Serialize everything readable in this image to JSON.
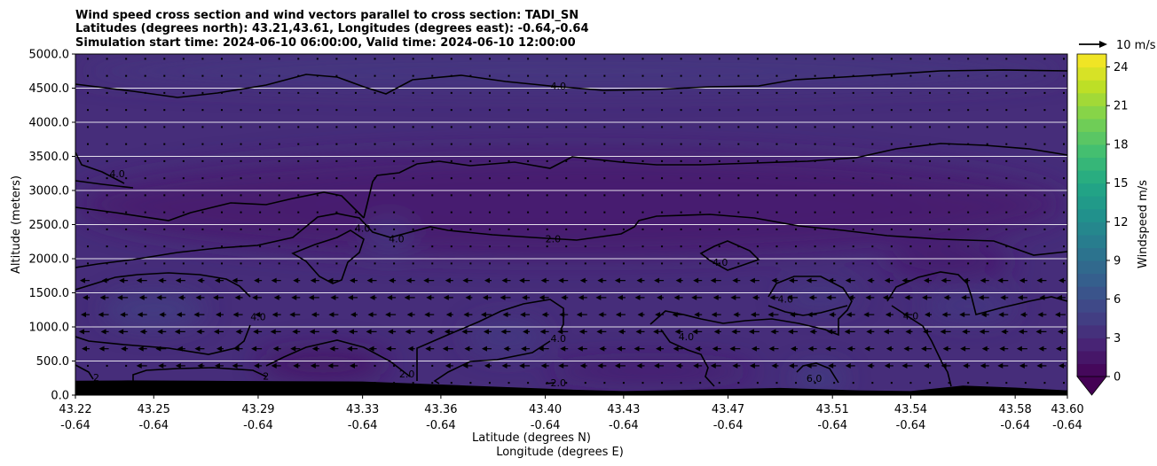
{
  "chart_data": {
    "type": "heatmap",
    "title_lines": [
      "Wind speed cross section and wind vectors parallel to cross section: TADI_SN",
      "Latitudes (degrees north): 43.21,43.61, Longitudes (degrees east): -0.64,-0.64",
      "Simulation start time: 2024-06-10 06:00:00, Valid time: 2024-06-10 12:00:00"
    ],
    "ylabel": "Altitude (meters)",
    "xlabel_lines": [
      "Latitude (degrees N)",
      "Longitude (degrees E)"
    ],
    "ylim": [
      0,
      5000
    ],
    "yticks": [
      {
        "value": 0,
        "label": "0.0"
      },
      {
        "value": 500,
        "label": "500.0"
      },
      {
        "value": 1000,
        "label": "1000.0"
      },
      {
        "value": 1500,
        "label": "1500.0"
      },
      {
        "value": 2000,
        "label": "2000.0"
      },
      {
        "value": 2500,
        "label": "2500.0"
      },
      {
        "value": 3000,
        "label": "3000.0"
      },
      {
        "value": 3500,
        "label": "3500.0"
      },
      {
        "value": 4000,
        "label": "4000.0"
      },
      {
        "value": 4500,
        "label": "4500.0"
      },
      {
        "value": 5000,
        "label": "5000.0"
      }
    ],
    "xlim": [
      43.22,
      43.6
    ],
    "xticks": [
      {
        "value": 43.22,
        "lat": "43.22",
        "lon": "-0.64"
      },
      {
        "value": 43.25,
        "lat": "43.25",
        "lon": "-0.64"
      },
      {
        "value": 43.29,
        "lat": "43.29",
        "lon": "-0.64"
      },
      {
        "value": 43.33,
        "lat": "43.33",
        "lon": "-0.64"
      },
      {
        "value": 43.36,
        "lat": "43.36",
        "lon": "-0.64"
      },
      {
        "value": 43.4,
        "lat": "43.40",
        "lon": "-0.64"
      },
      {
        "value": 43.43,
        "lat": "43.43",
        "lon": "-0.64"
      },
      {
        "value": 43.47,
        "lat": "43.47",
        "lon": "-0.64"
      },
      {
        "value": 43.51,
        "lat": "43.51",
        "lon": "-0.64"
      },
      {
        "value": 43.54,
        "lat": "43.54",
        "lon": "-0.64"
      },
      {
        "value": 43.58,
        "lat": "43.58",
        "lon": "-0.64"
      },
      {
        "value": 43.6,
        "lat": "43.60",
        "lon": "-0.64"
      }
    ],
    "colorbar": {
      "label": "Windspeed m/s",
      "range": [
        0,
        25
      ],
      "ticks": [
        {
          "value": 0,
          "label": "0"
        },
        {
          "value": 3,
          "label": "3"
        },
        {
          "value": 6,
          "label": "6"
        },
        {
          "value": 9,
          "label": "9"
        },
        {
          "value": 12,
          "label": "12"
        },
        {
          "value": 15,
          "label": "15"
        },
        {
          "value": 18,
          "label": "18"
        },
        {
          "value": 21,
          "label": "21"
        },
        {
          "value": 24,
          "label": "24"
        }
      ],
      "extend": "min",
      "colormap": "viridis"
    },
    "quiver_key": {
      "label": "10 m/s",
      "value": 10
    },
    "gridlines": "horizontal",
    "contour_labels": [
      {
        "x": 43.405,
        "y": 4530,
        "label": "4.0"
      },
      {
        "x": 43.236,
        "y": 3250,
        "label": "4.0"
      },
      {
        "x": 43.33,
        "y": 2450,
        "label": "4.0"
      },
      {
        "x": 43.343,
        "y": 2290,
        "label": "4.0"
      },
      {
        "x": 43.403,
        "y": 2290,
        "label": "2.0"
      },
      {
        "x": 43.467,
        "y": 1950,
        "label": "4.0"
      },
      {
        "x": 43.492,
        "y": 1410,
        "label": "4.0"
      },
      {
        "x": 43.54,
        "y": 1160,
        "label": "4.0"
      },
      {
        "x": 43.29,
        "y": 1150,
        "label": "4.0"
      },
      {
        "x": 43.454,
        "y": 860,
        "label": "4.0"
      },
      {
        "x": 43.405,
        "y": 830,
        "label": "4.0"
      },
      {
        "x": 43.347,
        "y": 310,
        "label": "2.0"
      },
      {
        "x": 43.405,
        "y": 180,
        "label": "2.0"
      },
      {
        "x": 43.503,
        "y": 250,
        "label": "6.0"
      },
      {
        "x": 43.228,
        "y": 260,
        "label": "2"
      },
      {
        "x": 43.293,
        "y": 280,
        "label": "2"
      }
    ],
    "terrain_profile": [
      [
        43.22,
        210
      ],
      [
        43.24,
        215
      ],
      [
        43.27,
        210
      ],
      [
        43.3,
        205
      ],
      [
        43.33,
        200
      ],
      [
        43.35,
        170
      ],
      [
        43.37,
        140
      ],
      [
        43.39,
        110
      ],
      [
        43.41,
        80
      ],
      [
        43.43,
        60
      ],
      [
        43.46,
        80
      ],
      [
        43.49,
        105
      ],
      [
        43.52,
        70
      ],
      [
        43.54,
        60
      ],
      [
        43.56,
        140
      ],
      [
        43.58,
        110
      ],
      [
        43.6,
        70
      ]
    ],
    "wind_speed_fill": {
      "background": 3.2,
      "regions": [
        {
          "speed": 1.2,
          "x": [
            43.225,
            43.59
          ],
          "y": [
            2200,
            3200
          ]
        },
        {
          "speed": 1.6,
          "x": [
            43.3,
            43.55
          ],
          "y": [
            2300,
            3400
          ]
        },
        {
          "speed": 2.2,
          "x": [
            43.22,
            43.6
          ],
          "y": [
            2000,
            3600
          ]
        },
        {
          "speed": 1.4,
          "x": [
            43.29,
            43.34
          ],
          "y": [
            200,
            700
          ]
        },
        {
          "speed": 1.8,
          "x": [
            43.4,
            43.48
          ],
          "y": [
            200,
            500
          ]
        },
        {
          "speed": 1.8,
          "x": [
            43.53,
            43.58
          ],
          "y": [
            1700,
            2200
          ]
        },
        {
          "speed": 4.6,
          "x": [
            43.23,
            43.27
          ],
          "y": [
            1000,
            1500
          ]
        },
        {
          "speed": 4.2,
          "x": [
            43.37,
            43.4
          ],
          "y": [
            600,
            1100
          ]
        },
        {
          "speed": 4.4,
          "x": [
            43.49,
            43.52
          ],
          "y": [
            1300,
            1600
          ]
        },
        {
          "speed": 5.0,
          "x": [
            43.495,
            43.515
          ],
          "y": [
            100,
            400
          ]
        },
        {
          "speed": 4.3,
          "x": [
            43.545,
            43.58
          ],
          "y": [
            1100,
            1500
          ]
        },
        {
          "speed": 4.0,
          "x": [
            43.33,
            43.35
          ],
          "y": [
            2100,
            2600
          ]
        },
        {
          "speed": 4.1,
          "x": [
            43.22,
            43.6
          ],
          "y": [
            4500,
            5000
          ]
        }
      ]
    }
  }
}
